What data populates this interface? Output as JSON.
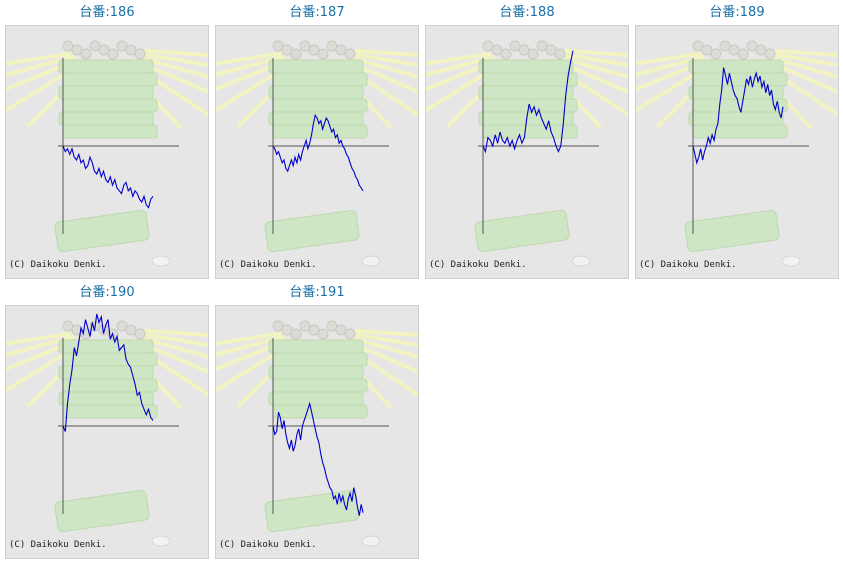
{
  "copyright": "(C) Daikoku Denki.",
  "colors": {
    "title": "#1a6fa5",
    "line": "#0000cc",
    "axis": "#555555",
    "panel_bg": "#e6e6e6"
  },
  "chart_data": [
    {
      "type": "line",
      "title": "台番:186",
      "values": [
        0,
        -2,
        -1,
        -3,
        -1,
        -4,
        -5,
        -3,
        -6,
        -5,
        -8,
        -7,
        -4,
        -6,
        -9,
        -10,
        -8,
        -11,
        -9,
        -12,
        -13,
        -11,
        -14,
        -12,
        -15,
        -16,
        -17,
        -14,
        -13,
        -16,
        -15,
        -18,
        -16,
        -17,
        -19,
        -20,
        -18,
        -21,
        -22,
        -19,
        -18
      ]
    },
    {
      "type": "line",
      "title": "台番:187",
      "values": [
        0,
        -1,
        -3,
        -2,
        -4,
        -6,
        -5,
        -8,
        -9,
        -7,
        -5,
        -7,
        -4,
        -6,
        -3,
        -5,
        -2,
        0,
        2,
        -1,
        1,
        4,
        8,
        11,
        10,
        8,
        9,
        6,
        8,
        10,
        9,
        7,
        5,
        6,
        3,
        4,
        1,
        2,
        0,
        -1,
        -3,
        -4,
        -6,
        -8,
        -9,
        -11,
        -12,
        -14,
        -15,
        -16
      ]
    },
    {
      "type": "line",
      "title": "台番:188",
      "values": [
        0,
        -2,
        3,
        2,
        0,
        4,
        1,
        5,
        2,
        1,
        3,
        0,
        2,
        -1,
        2,
        4,
        1,
        3,
        10,
        15,
        12,
        14,
        11,
        13,
        10,
        8,
        6,
        9,
        5,
        3,
        0,
        -2,
        0,
        8,
        18,
        25,
        30,
        34
      ]
    },
    {
      "type": "line",
      "title": "台番:189",
      "values": [
        0,
        -3,
        -6,
        -4,
        -1,
        -5,
        -2,
        0,
        3,
        1,
        4,
        2,
        6,
        8,
        15,
        20,
        28,
        25,
        22,
        26,
        23,
        20,
        18,
        17,
        14,
        12,
        16,
        20,
        24,
        22,
        25,
        21,
        24,
        26,
        23,
        25,
        21,
        23,
        19,
        22,
        18,
        20,
        15,
        13,
        16,
        12,
        10,
        14
      ]
    },
    {
      "type": "line",
      "title": "台番:190",
      "values": [
        0,
        -2,
        8,
        15,
        20,
        28,
        25,
        30,
        35,
        33,
        38,
        35,
        32,
        37,
        34,
        40,
        37,
        39,
        33,
        36,
        38,
        31,
        33,
        30,
        32,
        27,
        28,
        29,
        24,
        22,
        21,
        18,
        15,
        11,
        12,
        8,
        6,
        4,
        6,
        3,
        2
      ]
    },
    {
      "type": "line",
      "title": "台番:191",
      "values": [
        0,
        -3,
        -2,
        5,
        3,
        -1,
        2,
        -3,
        -6,
        -8,
        -5,
        -9,
        -7,
        -3,
        -1,
        -5,
        0,
        2,
        4,
        6,
        8,
        5,
        2,
        -1,
        -4,
        -6,
        -10,
        -13,
        -15,
        -18,
        -20,
        -22,
        -23,
        -26,
        -25,
        -28,
        -24,
        -27,
        -25,
        -28,
        -30,
        -26,
        -24,
        -27,
        -22,
        -25,
        -29,
        -32,
        -28,
        -31
      ]
    }
  ]
}
